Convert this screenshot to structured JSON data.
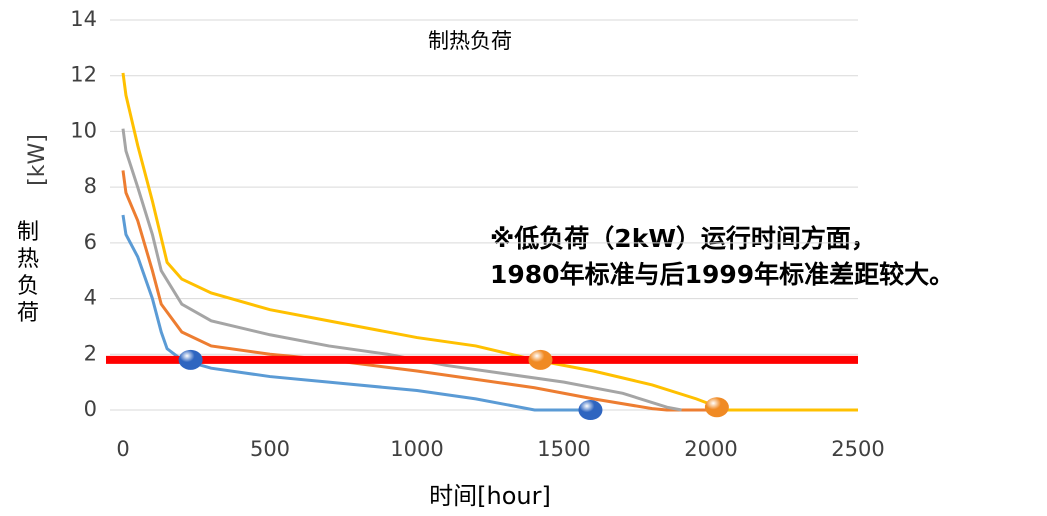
{
  "chart_data": {
    "type": "line",
    "title": "制热负荷",
    "xlabel": "时间[hour]",
    "ylabel": "制热负荷",
    "yunit": "[kW]",
    "annotation": [
      "※低负荷（2kW）运行时间方面，",
      "1980年标准与后1999年标准差距较大。"
    ],
    "xlim": [
      0,
      2500
    ],
    "xticks": [
      0,
      500,
      1000,
      1500,
      2000,
      2500
    ],
    "ylim": [
      0,
      14
    ],
    "yticks": [
      0,
      2,
      4,
      6,
      8,
      10,
      12,
      14
    ],
    "grid": true,
    "series": [
      {
        "color": "#5b9bd5",
        "x": [
          0,
          10,
          50,
          100,
          130,
          150,
          200,
          300,
          500,
          700,
          1000,
          1200,
          1300,
          1400,
          1600
        ],
        "values": [
          7,
          6.3,
          5.5,
          4,
          2.8,
          2.2,
          1.8,
          1.5,
          1.2,
          1.0,
          0.7,
          0.4,
          0.2,
          0,
          0
        ]
      },
      {
        "color": "#ed7d31",
        "x": [
          0,
          10,
          50,
          100,
          130,
          200,
          300,
          500,
          700,
          1000,
          1200,
          1400,
          1600,
          1800,
          1850,
          2000
        ],
        "values": [
          8.6,
          7.8,
          6.8,
          5,
          3.8,
          2.8,
          2.3,
          2.0,
          1.8,
          1.4,
          1.1,
          0.8,
          0.4,
          0.05,
          0,
          0
        ]
      },
      {
        "color": "#a5a5a5",
        "x": [
          0,
          10,
          50,
          100,
          130,
          200,
          300,
          500,
          700,
          900,
          1100,
          1300,
          1500,
          1700,
          1850,
          1900
        ],
        "values": [
          10.1,
          9.3,
          8,
          6.3,
          5,
          3.8,
          3.2,
          2.7,
          2.3,
          2.0,
          1.6,
          1.3,
          1.0,
          0.6,
          0.1,
          0
        ]
      },
      {
        "color": "#ffc000",
        "x": [
          0,
          10,
          50,
          100,
          150,
          200,
          300,
          500,
          700,
          1000,
          1200,
          1400,
          1600,
          1800,
          1950,
          2050,
          2500
        ],
        "values": [
          12.1,
          11.3,
          9.5,
          7.5,
          5.3,
          4.7,
          4.2,
          3.6,
          3.2,
          2.6,
          2.3,
          1.8,
          1.4,
          0.9,
          0.4,
          0,
          0
        ]
      }
    ],
    "reference_line": {
      "value": 1.8,
      "color": "#ff0000"
    },
    "points": [
      {
        "x": 230,
        "y": 1.8,
        "color": "#2e65c0"
      },
      {
        "x": 1420,
        "y": 1.8,
        "color": "#f08a24"
      },
      {
        "x": 1590,
        "y": 0,
        "color": "#2e65c0"
      },
      {
        "x": 2020,
        "y": 0.1,
        "color": "#f08a24"
      }
    ]
  }
}
